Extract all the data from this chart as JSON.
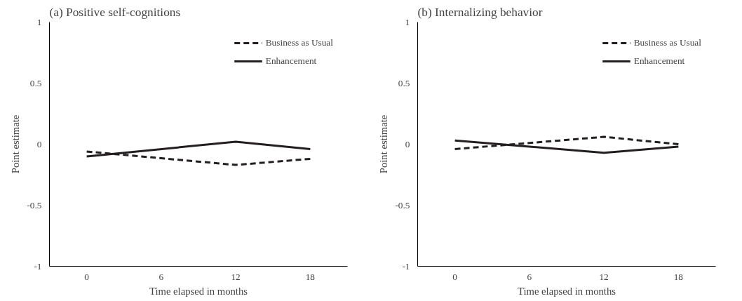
{
  "chart_data": [
    {
      "type": "line",
      "title": "(a) Positive self-cognitions",
      "xlabel": "Time elapsed in months",
      "ylabel": "Point estimate",
      "x": [
        0,
        12,
        18
      ],
      "xlim": [
        -3,
        21
      ],
      "xticks": [
        0,
        6,
        12,
        18
      ],
      "ylim": [
        -1,
        1
      ],
      "yticks": [
        -1,
        -0.5,
        0,
        0.5,
        1
      ],
      "grid": false,
      "legend": "top right",
      "marker": "none",
      "series": [
        {
          "name": "Business as Usual",
          "color": "#231f20",
          "line_style": "dashed",
          "values": [
            -0.06,
            -0.17,
            -0.12
          ]
        },
        {
          "name": "Enhancement",
          "color": "#231f20",
          "line_style": "solid",
          "values": [
            -0.1,
            0.02,
            -0.04
          ]
        }
      ]
    },
    {
      "type": "line",
      "title": "(b) Internalizing behavior",
      "xlabel": "Time elapsed in months",
      "ylabel": "Point estimate",
      "x": [
        0,
        12,
        18
      ],
      "xlim": [
        -3,
        21
      ],
      "xticks": [
        0,
        6,
        12,
        18
      ],
      "ylim": [
        -1,
        1
      ],
      "yticks": [
        -1,
        -0.5,
        0,
        0.5,
        1
      ],
      "grid": false,
      "legend": "top right",
      "marker": "none",
      "series": [
        {
          "name": "Business as Usual",
          "color": "#231f20",
          "line_style": "dashed",
          "values": [
            -0.04,
            0.06,
            0.0
          ]
        },
        {
          "name": "Enhancement",
          "color": "#231f20",
          "line_style": "solid",
          "values": [
            0.03,
            -0.07,
            -0.02
          ]
        }
      ]
    }
  ]
}
